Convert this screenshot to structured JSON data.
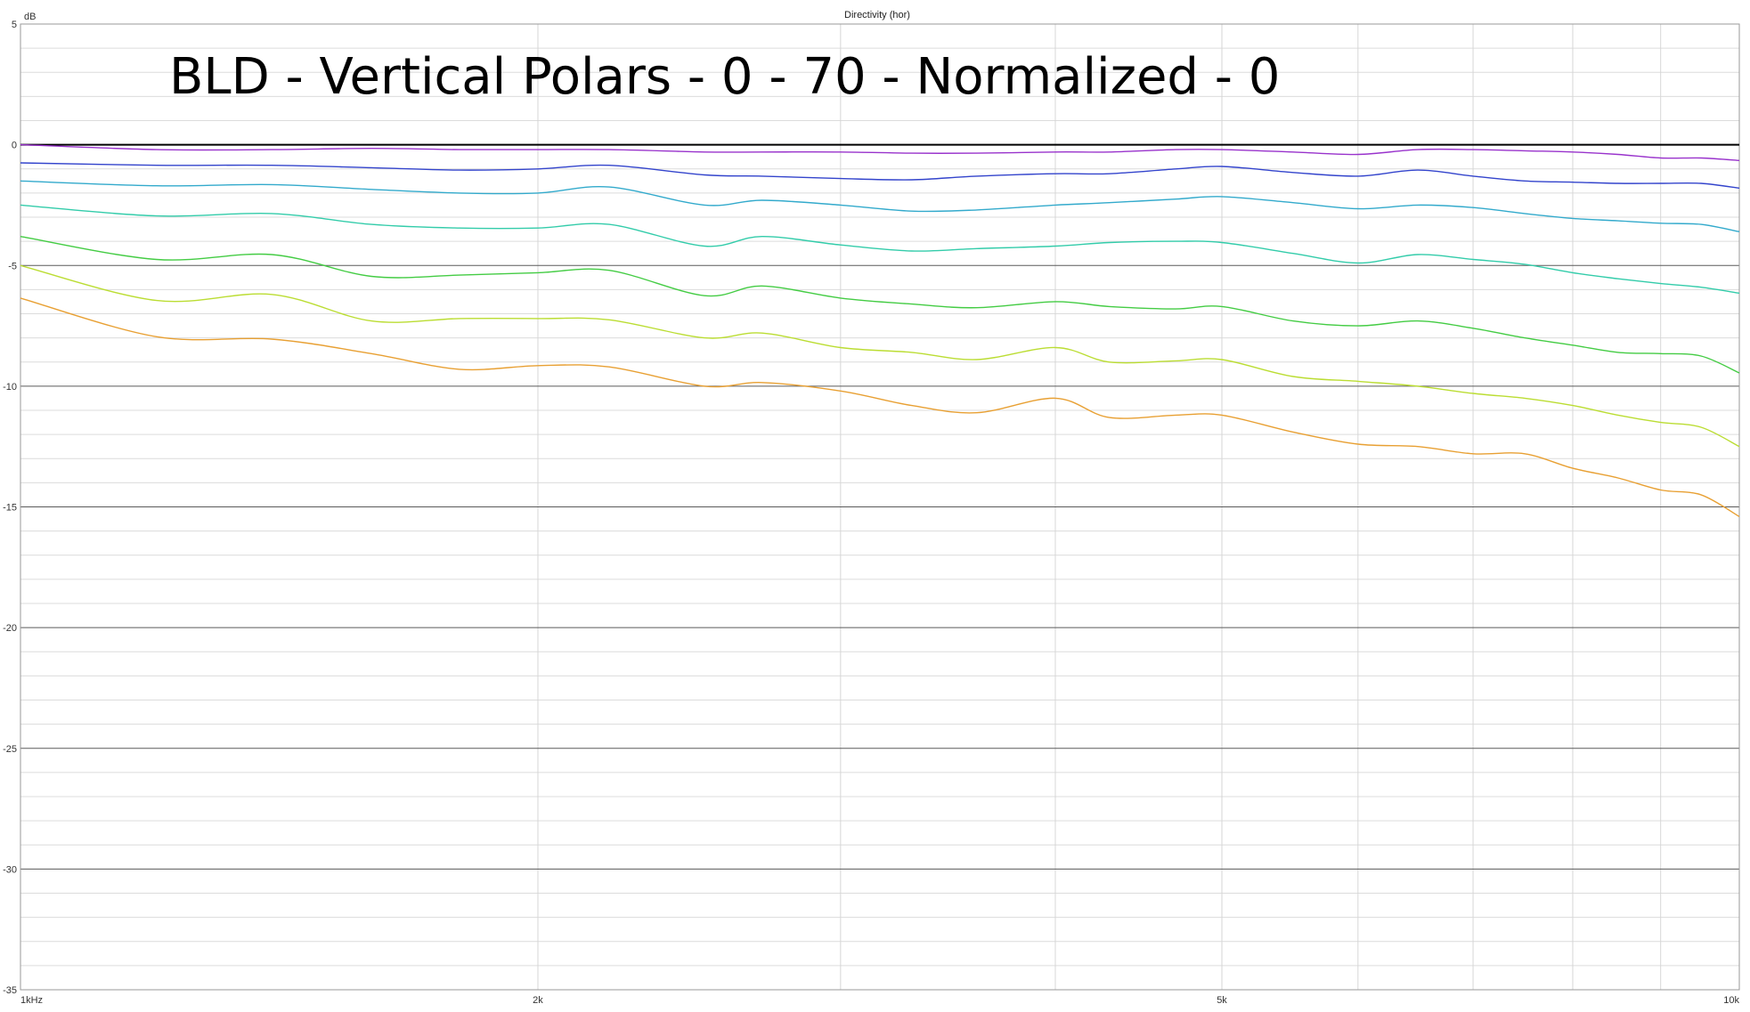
{
  "chart_data": {
    "type": "line",
    "title": "Directivity (hor)",
    "overlay_text": "BLD - Vertical Polars - 0 - 70 - Normalized - 0",
    "ylabel": "dB",
    "xscale": "log",
    "xlim": [
      1000,
      10000
    ],
    "ylim": [
      -35,
      5
    ],
    "grid": true,
    "x_ticks": [
      {
        "value": 1000,
        "label": "1kHz"
      },
      {
        "value": 2000,
        "label": "2k"
      },
      {
        "value": 5000,
        "label": "5k"
      },
      {
        "value": 10000,
        "label": "10k"
      }
    ],
    "y_ticks": [
      {
        "value": 5,
        "label": "5"
      },
      {
        "value": 0,
        "label": "0"
      },
      {
        "value": -5,
        "label": "-5"
      },
      {
        "value": -10,
        "label": "-10"
      },
      {
        "value": -15,
        "label": "-15"
      },
      {
        "value": -20,
        "label": "-20"
      },
      {
        "value": -25,
        "label": "-25"
      },
      {
        "value": -30,
        "label": "-30"
      },
      {
        "value": -35,
        "label": "-35"
      }
    ],
    "x": [
      1000,
      1200,
      1400,
      1600,
      1800,
      2000,
      2200,
      2500,
      2700,
      3000,
      3300,
      3600,
      4000,
      4300,
      4700,
      5000,
      5500,
      6000,
      6500,
      7000,
      7500,
      8000,
      8500,
      9000,
      9500,
      10000
    ],
    "series": [
      {
        "color": "#000000",
        "values": [
          0,
          0,
          0,
          0,
          0,
          0,
          0,
          0,
          0,
          0,
          0,
          0,
          0,
          0,
          0,
          0,
          0,
          0,
          0,
          0,
          0,
          0,
          0,
          0,
          0,
          0
        ]
      },
      {
        "color": "#9933cc",
        "values": [
          0,
          -0.2,
          -0.2,
          -0.15,
          -0.2,
          -0.2,
          -0.2,
          -0.3,
          -0.3,
          -0.3,
          -0.35,
          -0.35,
          -0.3,
          -0.3,
          -0.2,
          -0.2,
          -0.3,
          -0.4,
          -0.2,
          -0.2,
          -0.25,
          -0.3,
          -0.4,
          -0.55,
          -0.55,
          -0.65
        ]
      },
      {
        "color": "#3344cc",
        "values": [
          -0.75,
          -0.85,
          -0.85,
          -0.95,
          -1.05,
          -1.0,
          -0.85,
          -1.25,
          -1.3,
          -1.4,
          -1.45,
          -1.3,
          -1.2,
          -1.2,
          -1.0,
          -0.9,
          -1.15,
          -1.3,
          -1.05,
          -1.3,
          -1.5,
          -1.55,
          -1.6,
          -1.6,
          -1.6,
          -1.8
        ]
      },
      {
        "color": "#33aacc",
        "values": [
          -1.5,
          -1.7,
          -1.65,
          -1.85,
          -2.0,
          -2.0,
          -1.75,
          -2.5,
          -2.3,
          -2.5,
          -2.75,
          -2.7,
          -2.5,
          -2.4,
          -2.25,
          -2.15,
          -2.4,
          -2.65,
          -2.5,
          -2.6,
          -2.85,
          -3.05,
          -3.15,
          -3.25,
          -3.3,
          -3.6
        ]
      },
      {
        "color": "#33ccaa",
        "values": [
          -2.5,
          -2.95,
          -2.85,
          -3.3,
          -3.45,
          -3.45,
          -3.3,
          -4.2,
          -3.8,
          -4.15,
          -4.4,
          -4.3,
          -4.2,
          -4.05,
          -4.0,
          -4.05,
          -4.5,
          -4.9,
          -4.55,
          -4.75,
          -4.95,
          -5.3,
          -5.55,
          -5.75,
          -5.9,
          -6.15
        ]
      },
      {
        "color": "#44cc44",
        "values": [
          -3.8,
          -4.75,
          -4.55,
          -5.45,
          -5.4,
          -5.3,
          -5.2,
          -6.25,
          -5.85,
          -6.35,
          -6.6,
          -6.75,
          -6.5,
          -6.7,
          -6.8,
          -6.7,
          -7.3,
          -7.5,
          -7.3,
          -7.6,
          -8.0,
          -8.3,
          -8.6,
          -8.65,
          -8.75,
          -9.45
        ]
      },
      {
        "color": "#bbdd33",
        "values": [
          -5.0,
          -6.45,
          -6.2,
          -7.3,
          -7.2,
          -7.2,
          -7.25,
          -8.0,
          -7.8,
          -8.4,
          -8.6,
          -8.9,
          -8.4,
          -9.0,
          -8.95,
          -8.9,
          -9.6,
          -9.8,
          -10.0,
          -10.3,
          -10.5,
          -10.8,
          -11.2,
          -11.5,
          -11.7,
          -12.5
        ]
      },
      {
        "color": "#e8a033",
        "values": [
          -6.35,
          -7.95,
          -8.05,
          -8.65,
          -9.3,
          -9.15,
          -9.2,
          -10.0,
          -9.85,
          -10.2,
          -10.8,
          -11.1,
          -10.5,
          -11.3,
          -11.2,
          -11.2,
          -11.9,
          -12.4,
          -12.5,
          -12.8,
          -12.8,
          -13.4,
          -13.8,
          -14.3,
          -14.5,
          -15.4
        ]
      }
    ]
  }
}
